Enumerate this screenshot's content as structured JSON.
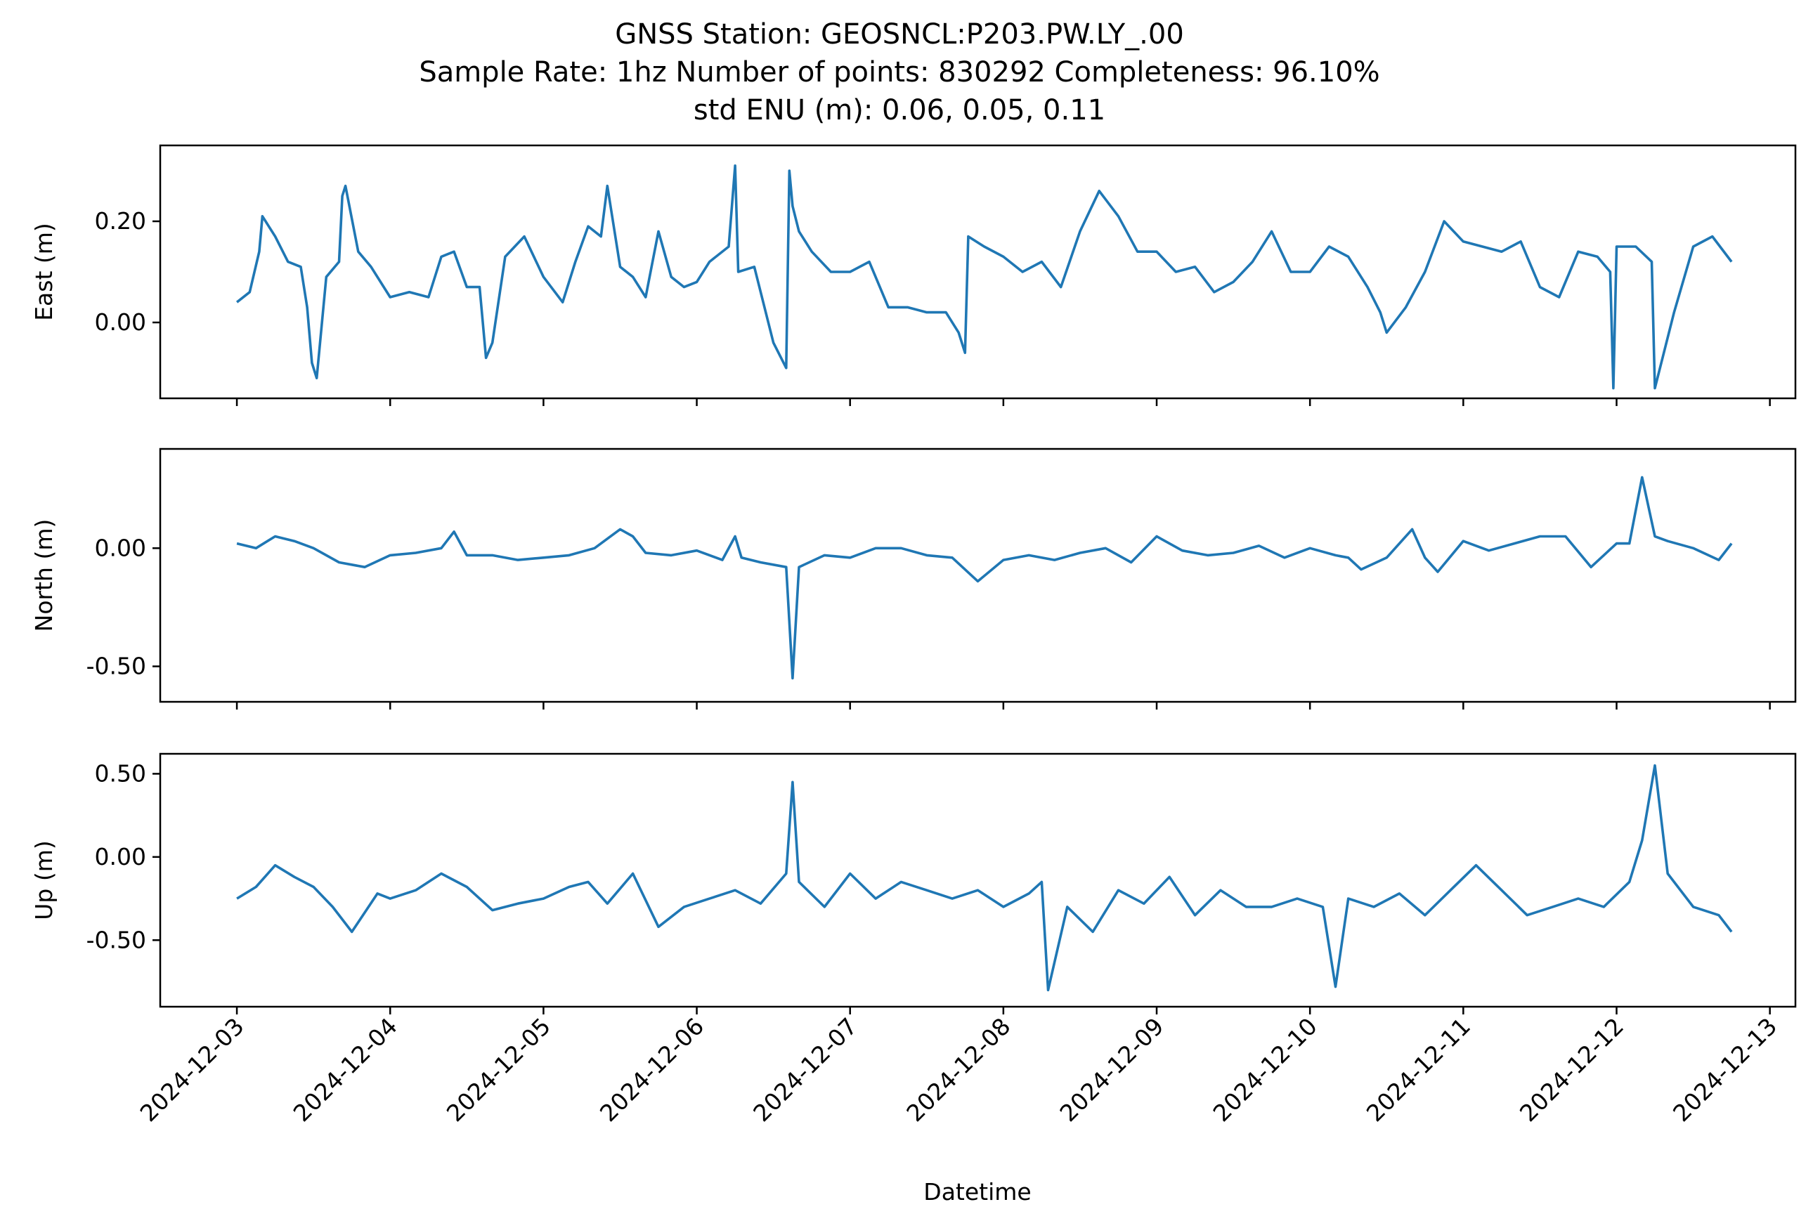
{
  "title_lines": [
    "GNSS Station: GEOSNCL:P203.PW.LY_.00",
    "Sample Rate: 1hz   Number of points: 830292    Completeness:  96.10%",
    "std ENU (m):  0.06, 0.05, 0.11"
  ],
  "chart_data": {
    "type": "line",
    "title": "GNSS Station: GEOSNCL:P203.PW.LY_.00",
    "subtitle": "Sample Rate: 1hz   Number of points: 830292    Completeness:  96.10%  |  std ENU (m):  0.06, 0.05, 0.11",
    "xlabel": "Datetime",
    "x_tick_labels": [
      "2024-12-03",
      "2024-12-04",
      "2024-12-05",
      "2024-12-06",
      "2024-12-07",
      "2024-12-08",
      "2024-12-09",
      "2024-12-10",
      "2024-12-11",
      "2024-12-12",
      "2024-12-13"
    ],
    "xlim": [
      "2024-12-02T12:00",
      "2024-12-13T04:00"
    ],
    "line_color": "#1f77b4",
    "grid": false,
    "panels": [
      {
        "ylabel": "East (m)",
        "ylim": [
          -0.15,
          0.35
        ],
        "y_ticks": [
          0.0,
          0.2
        ],
        "y_tick_labels": [
          "0.00",
          "0.20"
        ],
        "series": [
          {
            "x": [
              "2024-12-03T00:00",
              "2024-12-03T02:00",
              "2024-12-03T03:30",
              "2024-12-03T04:00",
              "2024-12-03T06:00",
              "2024-12-03T08:00",
              "2024-12-03T10:00",
              "2024-12-03T11:00",
              "2024-12-03T11:45",
              "2024-12-03T12:30",
              "2024-12-03T14:00",
              "2024-12-03T16:00",
              "2024-12-03T16:30",
              "2024-12-03T17:00",
              "2024-12-03T19:00",
              "2024-12-03T21:00",
              "2024-12-04T00:00",
              "2024-12-04T03:00",
              "2024-12-04T06:00",
              "2024-12-04T08:00",
              "2024-12-04T10:00",
              "2024-12-04T12:00",
              "2024-12-04T14:00",
              "2024-12-04T15:00",
              "2024-12-04T16:00",
              "2024-12-04T18:00",
              "2024-12-04T21:00",
              "2024-12-05T00:00",
              "2024-12-05T03:00",
              "2024-12-05T05:00",
              "2024-12-05T07:00",
              "2024-12-05T09:00",
              "2024-12-05T10:00",
              "2024-12-05T12:00",
              "2024-12-05T14:00",
              "2024-12-05T16:00",
              "2024-12-05T18:00",
              "2024-12-05T20:00",
              "2024-12-05T22:00",
              "2024-12-06T00:00",
              "2024-12-06T02:00",
              "2024-12-06T05:00",
              "2024-12-06T06:00",
              "2024-12-06T06:30",
              "2024-12-06T09:00",
              "2024-12-06T12:00",
              "2024-12-06T14:00",
              "2024-12-06T14:30",
              "2024-12-06T15:00",
              "2024-12-06T16:00",
              "2024-12-06T18:00",
              "2024-12-06T21:00",
              "2024-12-07T00:00",
              "2024-12-07T03:00",
              "2024-12-07T06:00",
              "2024-12-07T09:00",
              "2024-12-07T12:00",
              "2024-12-07T15:00",
              "2024-12-07T17:00",
              "2024-12-07T18:00",
              "2024-12-07T18:30",
              "2024-12-07T21:00",
              "2024-12-08T00:00",
              "2024-12-08T03:00",
              "2024-12-08T06:00",
              "2024-12-08T09:00",
              "2024-12-08T12:00",
              "2024-12-08T15:00",
              "2024-12-08T18:00",
              "2024-12-08T21:00",
              "2024-12-09T00:00",
              "2024-12-09T03:00",
              "2024-12-09T06:00",
              "2024-12-09T09:00",
              "2024-12-09T12:00",
              "2024-12-09T15:00",
              "2024-12-09T18:00",
              "2024-12-09T21:00",
              "2024-12-10T00:00",
              "2024-12-10T03:00",
              "2024-12-10T06:00",
              "2024-12-10T09:00",
              "2024-12-10T11:00",
              "2024-12-10T12:00",
              "2024-12-10T15:00",
              "2024-12-10T18:00",
              "2024-12-10T21:00",
              "2024-12-11T00:00",
              "2024-12-11T03:00",
              "2024-12-11T06:00",
              "2024-12-11T09:00",
              "2024-12-11T12:00",
              "2024-12-11T15:00",
              "2024-12-11T18:00",
              "2024-12-11T21:00",
              "2024-12-11T23:00",
              "2024-12-11T23:30",
              "2024-12-12T00:00",
              "2024-12-12T03:00",
              "2024-12-12T05:30",
              "2024-12-12T06:00",
              "2024-12-12T09:00",
              "2024-12-12T12:00",
              "2024-12-12T15:00",
              "2024-12-12T18:00"
            ],
            "y": [
              0.04,
              0.06,
              0.14,
              0.21,
              0.17,
              0.12,
              0.11,
              0.03,
              -0.08,
              -0.11,
              0.09,
              0.12,
              0.25,
              0.27,
              0.14,
              0.11,
              0.05,
              0.06,
              0.05,
              0.13,
              0.14,
              0.07,
              0.07,
              -0.07,
              -0.04,
              0.13,
              0.17,
              0.09,
              0.04,
              0.12,
              0.19,
              0.17,
              0.27,
              0.11,
              0.09,
              0.05,
              0.18,
              0.09,
              0.07,
              0.08,
              0.12,
              0.15,
              0.31,
              0.1,
              0.11,
              -0.04,
              -0.09,
              0.3,
              0.23,
              0.18,
              0.14,
              0.1,
              0.1,
              0.12,
              0.03,
              0.03,
              0.02,
              0.02,
              -0.02,
              -0.06,
              0.17,
              0.15,
              0.13,
              0.1,
              0.12,
              0.07,
              0.18,
              0.26,
              0.21,
              0.14,
              0.14,
              0.1,
              0.11,
              0.06,
              0.08,
              0.12,
              0.18,
              0.1,
              0.1,
              0.15,
              0.13,
              0.07,
              0.02,
              -0.02,
              0.03,
              0.1,
              0.2,
              0.16,
              0.15,
              0.14,
              0.16,
              0.07,
              0.05,
              0.14,
              0.13,
              0.1,
              -0.13,
              0.15,
              0.15,
              0.12,
              -0.13,
              0.02,
              0.15,
              0.17,
              0.12
            ]
          }
        ]
      },
      {
        "ylabel": "North (m)",
        "ylim": [
          -0.65,
          0.42
        ],
        "y_ticks": [
          0.0,
          -0.5
        ],
        "y_tick_labels": [
          "0.00",
          "-0.50"
        ],
        "series": [
          {
            "x": [
              "2024-12-03T00:00",
              "2024-12-03T03:00",
              "2024-12-03T06:00",
              "2024-12-03T09:00",
              "2024-12-03T12:00",
              "2024-12-03T16:00",
              "2024-12-03T20:00",
              "2024-12-04T00:00",
              "2024-12-04T04:00",
              "2024-12-04T08:00",
              "2024-12-04T10:00",
              "2024-12-04T12:00",
              "2024-12-04T16:00",
              "2024-12-04T20:00",
              "2024-12-05T00:00",
              "2024-12-05T04:00",
              "2024-12-05T08:00",
              "2024-12-05T12:00",
              "2024-12-05T14:00",
              "2024-12-05T16:00",
              "2024-12-05T20:00",
              "2024-12-06T00:00",
              "2024-12-06T04:00",
              "2024-12-06T06:00",
              "2024-12-06T07:00",
              "2024-12-06T10:00",
              "2024-12-06T14:00",
              "2024-12-06T15:00",
              "2024-12-06T16:00",
              "2024-12-06T20:00",
              "2024-12-07T00:00",
              "2024-12-07T04:00",
              "2024-12-07T08:00",
              "2024-12-07T12:00",
              "2024-12-07T16:00",
              "2024-12-07T20:00",
              "2024-12-08T00:00",
              "2024-12-08T04:00",
              "2024-12-08T08:00",
              "2024-12-08T12:00",
              "2024-12-08T16:00",
              "2024-12-08T20:00",
              "2024-12-09T00:00",
              "2024-12-09T04:00",
              "2024-12-09T08:00",
              "2024-12-09T12:00",
              "2024-12-09T16:00",
              "2024-12-09T20:00",
              "2024-12-10T00:00",
              "2024-12-10T04:00",
              "2024-12-10T06:00",
              "2024-12-10T08:00",
              "2024-12-10T12:00",
              "2024-12-10T16:00",
              "2024-12-10T18:00",
              "2024-12-10T20:00",
              "2024-12-11T00:00",
              "2024-12-11T04:00",
              "2024-12-11T08:00",
              "2024-12-11T12:00",
              "2024-12-11T16:00",
              "2024-12-11T20:00",
              "2024-12-12T00:00",
              "2024-12-12T02:00",
              "2024-12-12T04:00",
              "2024-12-12T06:00",
              "2024-12-12T08:00",
              "2024-12-12T12:00",
              "2024-12-12T16:00",
              "2024-12-12T18:00"
            ],
            "y": [
              0.02,
              0.0,
              0.05,
              0.03,
              0.0,
              -0.06,
              -0.08,
              -0.03,
              -0.02,
              0.0,
              0.07,
              -0.03,
              -0.03,
              -0.05,
              -0.04,
              -0.03,
              0.0,
              0.08,
              0.05,
              -0.02,
              -0.03,
              -0.01,
              -0.05,
              0.05,
              -0.04,
              -0.06,
              -0.08,
              -0.55,
              -0.08,
              -0.03,
              -0.04,
              0.0,
              0.0,
              -0.03,
              -0.04,
              -0.14,
              -0.05,
              -0.03,
              -0.05,
              -0.02,
              0.0,
              -0.06,
              0.05,
              -0.01,
              -0.03,
              -0.02,
              0.01,
              -0.04,
              0.0,
              -0.03,
              -0.04,
              -0.09,
              -0.04,
              0.08,
              -0.04,
              -0.1,
              0.03,
              -0.01,
              0.02,
              0.05,
              0.05,
              -0.08,
              0.02,
              0.02,
              0.3,
              0.05,
              0.03,
              0.0,
              -0.05,
              0.02
            ]
          }
        ]
      },
      {
        "ylabel": "Up (m)",
        "ylim": [
          -0.9,
          0.62
        ],
        "y_ticks": [
          0.5,
          0.0,
          -0.5
        ],
        "y_tick_labels": [
          "0.50",
          "0.00",
          "-0.50"
        ],
        "series": [
          {
            "x": [
              "2024-12-03T00:00",
              "2024-12-03T03:00",
              "2024-12-03T06:00",
              "2024-12-03T09:00",
              "2024-12-03T12:00",
              "2024-12-03T15:00",
              "2024-12-03T18:00",
              "2024-12-03T22:00",
              "2024-12-04T00:00",
              "2024-12-04T04:00",
              "2024-12-04T08:00",
              "2024-12-04T12:00",
              "2024-12-04T16:00",
              "2024-12-04T20:00",
              "2024-12-05T00:00",
              "2024-12-05T04:00",
              "2024-12-05T07:00",
              "2024-12-05T10:00",
              "2024-12-05T14:00",
              "2024-12-05T18:00",
              "2024-12-05T22:00",
              "2024-12-06T02:00",
              "2024-12-06T06:00",
              "2024-12-06T10:00",
              "2024-12-06T14:00",
              "2024-12-06T15:00",
              "2024-12-06T16:00",
              "2024-12-06T20:00",
              "2024-12-07T00:00",
              "2024-12-07T04:00",
              "2024-12-07T08:00",
              "2024-12-07T12:00",
              "2024-12-07T16:00",
              "2024-12-07T20:00",
              "2024-12-08T00:00",
              "2024-12-08T04:00",
              "2024-12-08T06:00",
              "2024-12-08T07:00",
              "2024-12-08T10:00",
              "2024-12-08T14:00",
              "2024-12-08T18:00",
              "2024-12-08T22:00",
              "2024-12-09T02:00",
              "2024-12-09T06:00",
              "2024-12-09T10:00",
              "2024-12-09T14:00",
              "2024-12-09T18:00",
              "2024-12-09T22:00",
              "2024-12-10T02:00",
              "2024-12-10T04:00",
              "2024-12-10T06:00",
              "2024-12-10T10:00",
              "2024-12-10T14:00",
              "2024-12-10T18:00",
              "2024-12-10T22:00",
              "2024-12-11T02:00",
              "2024-12-11T06:00",
              "2024-12-11T10:00",
              "2024-12-11T14:00",
              "2024-12-11T18:00",
              "2024-12-11T22:00",
              "2024-12-12T02:00",
              "2024-12-12T04:00",
              "2024-12-12T06:00",
              "2024-12-12T08:00",
              "2024-12-12T12:00",
              "2024-12-12T16:00",
              "2024-12-12T18:00"
            ],
            "y": [
              -0.25,
              -0.18,
              -0.05,
              -0.12,
              -0.18,
              -0.3,
              -0.45,
              -0.22,
              -0.25,
              -0.2,
              -0.1,
              -0.18,
              -0.32,
              -0.28,
              -0.25,
              -0.18,
              -0.15,
              -0.28,
              -0.1,
              -0.42,
              -0.3,
              -0.25,
              -0.2,
              -0.28,
              -0.1,
              0.45,
              -0.15,
              -0.3,
              -0.1,
              -0.25,
              -0.15,
              -0.2,
              -0.25,
              -0.2,
              -0.3,
              -0.22,
              -0.15,
              -0.8,
              -0.3,
              -0.45,
              -0.2,
              -0.28,
              -0.12,
              -0.35,
              -0.2,
              -0.3,
              -0.3,
              -0.25,
              -0.3,
              -0.78,
              -0.25,
              -0.3,
              -0.22,
              -0.35,
              -0.2,
              -0.05,
              -0.2,
              -0.35,
              -0.3,
              -0.25,
              -0.3,
              -0.15,
              0.1,
              0.55,
              -0.1,
              -0.3,
              -0.35,
              -0.45
            ]
          }
        ]
      }
    ]
  }
}
